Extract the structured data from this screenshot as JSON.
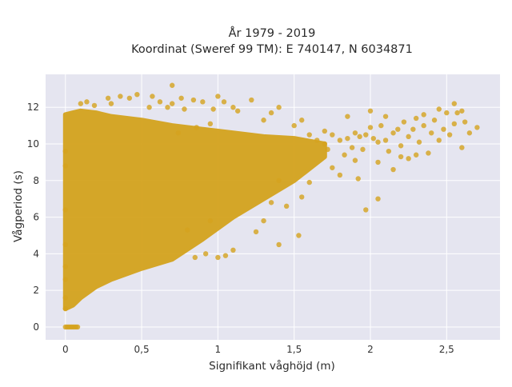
{
  "chart_data": {
    "type": "scatter",
    "title_lines": [
      "År 1979 - 2019",
      "Koordinat (Sweref 99 TM): E 740147, N 6034871"
    ],
    "xlabel": "Signifikant våghöjd (m)",
    "ylabel": "Vågperiod (s)",
    "xlim": [
      -0.13,
      2.85
    ],
    "ylim": [
      -0.7,
      13.8
    ],
    "x_ticks": [
      {
        "value": 0,
        "label": "0"
      },
      {
        "value": 0.5,
        "label": "0,5"
      },
      {
        "value": 1,
        "label": "1"
      },
      {
        "value": 1.5,
        "label": "1,5"
      },
      {
        "value": 2,
        "label": "2"
      },
      {
        "value": 2.5,
        "label": "2,5"
      }
    ],
    "y_ticks": [
      {
        "value": 0,
        "label": "0"
      },
      {
        "value": 2,
        "label": "2"
      },
      {
        "value": 4,
        "label": "4"
      },
      {
        "value": 6,
        "label": "6"
      },
      {
        "value": 8,
        "label": "8"
      },
      {
        "value": 10,
        "label": "10"
      },
      {
        "value": 12,
        "label": "12"
      }
    ],
    "grid": true,
    "marker_color": "#d4a31e",
    "plot_bg": "#e5e5f0",
    "grid_color": "#ffffff",
    "dense_region": {
      "x": [
        0.0,
        0.05,
        0.1,
        0.2,
        0.3,
        0.5,
        0.7,
        0.9,
        1.1,
        1.3,
        1.5,
        1.7
      ],
      "y_lower": [
        1.0,
        1.2,
        1.6,
        2.2,
        2.6,
        3.2,
        3.7,
        4.8,
        6.0,
        7.0,
        8.0,
        9.3
      ],
      "y_upper": [
        11.6,
        11.7,
        11.8,
        11.7,
        11.5,
        11.3,
        11.0,
        10.8,
        10.6,
        10.4,
        10.3,
        10.0
      ]
    },
    "points": [
      [
        0.0,
        0.0
      ],
      [
        0.01,
        0.0
      ],
      [
        0.02,
        0.0
      ],
      [
        0.03,
        0.0
      ],
      [
        0.04,
        0.0
      ],
      [
        0.05,
        0.0
      ],
      [
        0.06,
        0.0
      ],
      [
        0.07,
        0.0
      ],
      [
        0.08,
        0.0
      ],
      [
        0.0,
        8.8
      ],
      [
        0.0,
        6.4
      ],
      [
        0.0,
        4.5
      ],
      [
        0.0,
        2.6
      ],
      [
        0.0,
        1.6
      ],
      [
        0.0,
        1.0
      ],
      [
        0.0,
        9.6
      ],
      [
        0.0,
        3.3
      ],
      [
        0.1,
        12.2
      ],
      [
        0.14,
        12.3
      ],
      [
        0.19,
        12.1
      ],
      [
        0.28,
        12.5
      ],
      [
        0.3,
        12.2
      ],
      [
        0.36,
        12.6
      ],
      [
        0.42,
        12.5
      ],
      [
        0.47,
        12.7
      ],
      [
        0.55,
        12.0
      ],
      [
        0.57,
        12.6
      ],
      [
        0.62,
        12.3
      ],
      [
        0.67,
        12.0
      ],
      [
        0.7,
        13.2
      ],
      [
        0.7,
        12.2
      ],
      [
        0.76,
        12.5
      ],
      [
        0.78,
        11.9
      ],
      [
        0.84,
        12.4
      ],
      [
        0.9,
        12.3
      ],
      [
        0.97,
        11.9
      ],
      [
        1.0,
        12.6
      ],
      [
        1.04,
        12.3
      ],
      [
        1.1,
        12.0
      ],
      [
        1.13,
        11.8
      ],
      [
        1.22,
        12.4
      ],
      [
        0.74,
        10.6
      ],
      [
        0.86,
        10.9
      ],
      [
        0.95,
        11.1
      ],
      [
        1.6,
        10.5
      ],
      [
        1.65,
        10.2
      ],
      [
        1.7,
        10.0
      ],
      [
        1.72,
        9.7
      ],
      [
        1.75,
        10.5
      ],
      [
        1.8,
        10.2
      ],
      [
        1.83,
        9.4
      ],
      [
        1.85,
        10.3
      ],
      [
        1.88,
        9.8
      ],
      [
        1.9,
        10.6
      ],
      [
        1.93,
        10.4
      ],
      [
        1.95,
        9.7
      ],
      [
        1.97,
        10.5
      ],
      [
        2.0,
        10.9
      ],
      [
        2.02,
        10.3
      ],
      [
        2.05,
        10.1
      ],
      [
        2.07,
        11.0
      ],
      [
        2.1,
        10.2
      ],
      [
        2.12,
        9.6
      ],
      [
        2.15,
        10.6
      ],
      [
        2.18,
        10.8
      ],
      [
        2.2,
        9.9
      ],
      [
        2.22,
        11.2
      ],
      [
        2.25,
        10.4
      ],
      [
        2.28,
        10.8
      ],
      [
        2.3,
        11.4
      ],
      [
        2.32,
        10.1
      ],
      [
        2.35,
        11.0
      ],
      [
        2.38,
        9.5
      ],
      [
        2.4,
        10.6
      ],
      [
        2.42,
        11.3
      ],
      [
        2.45,
        10.2
      ],
      [
        2.48,
        10.8
      ],
      [
        2.5,
        11.7
      ],
      [
        2.52,
        10.5
      ],
      [
        2.55,
        11.1
      ],
      [
        2.57,
        11.7
      ],
      [
        2.6,
        11.8
      ],
      [
        2.62,
        11.2
      ],
      [
        2.65,
        10.6
      ],
      [
        2.7,
        10.9
      ],
      [
        2.6,
        9.8
      ],
      [
        1.9,
        9.1
      ],
      [
        2.05,
        9.0
      ],
      [
        2.15,
        8.6
      ],
      [
        2.2,
        9.3
      ],
      [
        2.3,
        9.4
      ],
      [
        2.25,
        9.2
      ],
      [
        1.97,
        6.4
      ],
      [
        2.05,
        7.0
      ],
      [
        1.92,
        8.1
      ],
      [
        1.8,
        8.3
      ],
      [
        1.6,
        7.9
      ],
      [
        1.75,
        8.7
      ],
      [
        1.4,
        8.0
      ],
      [
        1.55,
        7.1
      ],
      [
        1.45,
        6.6
      ],
      [
        1.35,
        6.8
      ],
      [
        1.3,
        5.8
      ],
      [
        1.4,
        4.5
      ],
      [
        1.53,
        5.0
      ],
      [
        1.25,
        5.2
      ],
      [
        1.1,
        4.2
      ],
      [
        1.0,
        3.8
      ],
      [
        1.05,
        3.9
      ],
      [
        0.92,
        4.0
      ],
      [
        0.85,
        3.8
      ],
      [
        0.95,
        5.8
      ],
      [
        0.8,
        5.3
      ],
      [
        1.7,
        10.7
      ],
      [
        1.55,
        11.3
      ],
      [
        1.35,
        11.7
      ],
      [
        1.5,
        11.0
      ],
      [
        1.85,
        11.5
      ],
      [
        2.0,
        11.8
      ],
      [
        2.1,
        11.5
      ],
      [
        2.35,
        11.6
      ],
      [
        2.55,
        12.2
      ],
      [
        2.45,
        11.9
      ],
      [
        1.3,
        11.3
      ],
      [
        1.4,
        12.0
      ]
    ]
  }
}
